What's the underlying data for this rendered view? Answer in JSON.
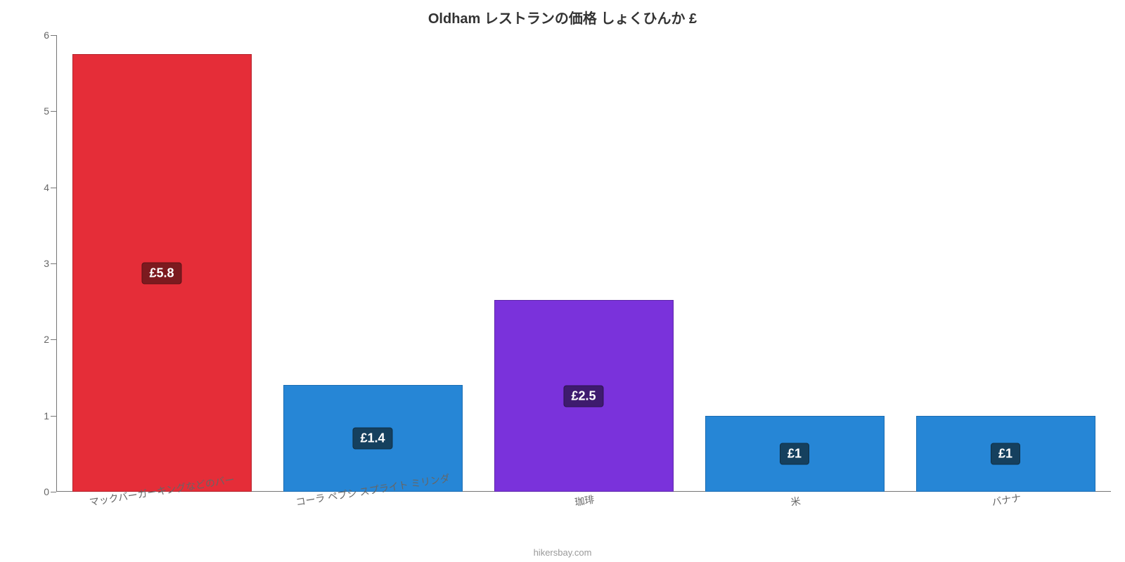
{
  "chart": {
    "type": "bar",
    "title": "Oldham レストランの価格 しょくひんか £",
    "title_fontsize": 20,
    "title_color": "#333333",
    "background_color": "#ffffff",
    "axis_color": "#767676",
    "tick_label_color": "#666666",
    "tick_label_fontsize": 14,
    "x_label_fontsize": 14,
    "x_label_color": "#666666",
    "x_label_rotation": -9,
    "ylim": [
      0,
      6
    ],
    "ytick_step": 1,
    "yticks": [
      0,
      1,
      2,
      3,
      4,
      5,
      6
    ],
    "bar_width": 0.85,
    "bar_border_width": 1,
    "categories": [
      "マックバーガーキングなどのバー",
      "コーラ ペプシ スプライト ミリンダ",
      "珈琲",
      "米",
      "バナナ"
    ],
    "values": [
      5.75,
      1.4,
      2.52,
      1.0,
      1.0
    ],
    "value_labels": [
      "£5.8",
      "£1.4",
      "£2.5",
      "£1",
      "£1"
    ],
    "bar_colors": [
      "#e52d38",
      "#2686d6",
      "#7a32db",
      "#2686d6",
      "#2686d6"
    ],
    "bar_border_colors": [
      "#b4232c",
      "#1b6db3",
      "#5f27ab",
      "#1b6db3",
      "#1b6db3"
    ],
    "badge_bg_colors": [
      "#7c1a1f",
      "#15405e",
      "#3e1b6e",
      "#15405e",
      "#15405e"
    ],
    "badge_border_colors": [
      "#5a1216",
      "#0f2e44",
      "#2c1350",
      "#0f2e44",
      "#0f2e44"
    ],
    "badge_fontsize": 18,
    "credit": "hikersbay.com",
    "credit_color": "#999999",
    "credit_fontsize": 13
  }
}
